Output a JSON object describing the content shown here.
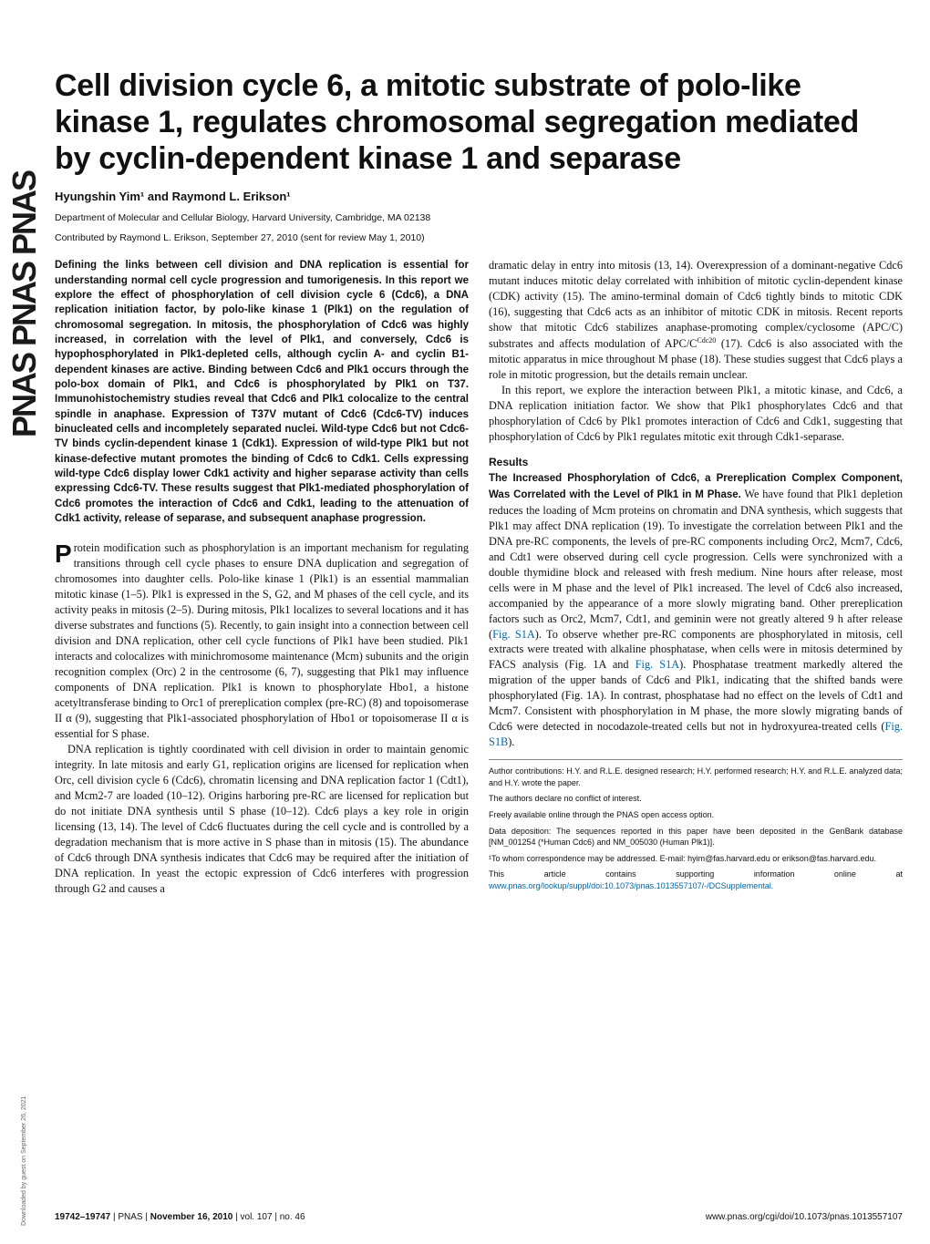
{
  "sidebar": {
    "logo_text": "PNAS  PNAS  PNAS",
    "download_note": "Downloaded by guest on September 26, 2021"
  },
  "title": "Cell division cycle 6, a mitotic substrate of polo-like kinase 1, regulates chromosomal segregation mediated by cyclin-dependent kinase 1 and separase",
  "authors": "Hyungshin Yim¹ and Raymond L. Erikson¹",
  "affiliation": "Department of Molecular and Cellular Biology, Harvard University, Cambridge, MA 02138",
  "contributed": "Contributed by Raymond L. Erikson, September 27, 2010 (sent for review May 1, 2010)",
  "abstract": "Defining the links between cell division and DNA replication is essential for understanding normal cell cycle progression and tumorigenesis. In this report we explore the effect of phosphorylation of cell division cycle 6 (Cdc6), a DNA replication initiation factor, by polo-like kinase 1 (Plk1) on the regulation of chromosomal segregation. In mitosis, the phosphorylation of Cdc6 was highly increased, in correlation with the level of Plk1, and conversely, Cdc6 is hypophosphorylated in Plk1-depleted cells, although cyclin A- and cyclin B1-dependent kinases are active. Binding between Cdc6 and Plk1 occurs through the polo-box domain of Plk1, and Cdc6 is phosphorylated by Plk1 on T37. Immunohistochemistry studies reveal that Cdc6 and Plk1 colocalize to the central spindle in anaphase. Expression of T37V mutant of Cdc6 (Cdc6-TV) induces binucleated cells and incompletely separated nuclei. Wild-type Cdc6 but not Cdc6-TV binds cyclin-dependent kinase 1 (Cdk1). Expression of wild-type Plk1 but not kinase-defective mutant promotes the binding of Cdc6 to Cdk1. Cells expressing wild-type Cdc6 display lower Cdk1 activity and higher separase activity than cells expressing Cdc6-TV. These results suggest that Plk1-mediated phosphorylation of Cdc6 promotes the interaction of Cdc6 and Cdk1, leading to the attenuation of Cdk1 activity, release of separase, and subsequent anaphase progression.",
  "intro_p1": "Protein modification such as phosphorylation is an important mechanism for regulating transitions through cell cycle phases to ensure DNA duplication and segregation of chromosomes into daughter cells. Polo-like kinase 1 (Plk1) is an essential mammalian mitotic kinase (1–5). Plk1 is expressed in the S, G2, and M phases of the cell cycle, and its activity peaks in mitosis (2–5). During mitosis, Plk1 localizes to several locations and it has diverse substrates and functions (5). Recently, to gain insight into a connection between cell division and DNA replication, other cell cycle functions of Plk1 have been studied. Plk1 interacts and colocalizes with minichromosome maintenance (Mcm) subunits and the origin recognition complex (Orc) 2 in the centrosome (6, 7), suggesting that Plk1 may influence components of DNA replication. Plk1 is known to phosphorylate Hbo1, a histone acetyltransferase binding to Orc1 of prereplication complex (pre-RC) (8) and topoisomerase II α (9), suggesting that Plk1-associated phosphorylation of Hbo1 or topoisomerase II α is essential for S phase.",
  "intro_p2": "DNA replication is tightly coordinated with cell division in order to maintain genomic integrity. In late mitosis and early G1, replication origins are licensed for replication when Orc, cell division cycle 6 (Cdc6), chromatin licensing and DNA replication factor 1 (Cdt1), and Mcm2-7 are loaded (10–12). Origins harboring pre-RC are licensed for replication but do not initiate DNA synthesis until S phase (10–12). Cdc6 plays a key role in origin licensing (13, 14). The level of Cdc6 fluctuates during the cell cycle and is controlled by a degradation mechanism that is more active in S phase than in mitosis (15). The abundance of Cdc6 through DNA synthesis indicates that Cdc6 may be required after the initiation of DNA replication. In yeast the ectopic expression of Cdc6 interferes with progression through G2 and causes a",
  "col2_p1_a": "dramatic delay in entry into mitosis (13, 14). Overexpression of a dominant-negative Cdc6 mutant induces mitotic delay correlated with inhibition of mitotic cyclin-dependent kinase (CDK) activity (15). The amino-terminal domain of Cdc6 tightly binds to mitotic CDK (16), suggesting that Cdc6 acts as an inhibitor of mitotic CDK in mitosis. Recent reports show that mitotic Cdc6 stabilizes anaphase-promoting complex/cyclosome (APC/C) substrates and affects modulation of APC/C",
  "col2_p1_cdc20": "Cdc20",
  "col2_p1_b": " (17). Cdc6 is also associated with the mitotic apparatus in mice throughout M phase (18). These studies suggest that Cdc6 plays a role in mitotic progression, but the details remain unclear.",
  "col2_p2": "In this report, we explore the interaction between Plk1, a mitotic kinase, and Cdc6, a DNA replication initiation factor. We show that Plk1 phosphorylates Cdc6 and that phosphorylation of Cdc6 by Plk1 promotes interaction of Cdc6 and Cdk1, suggesting that phosphorylation of Cdc6 by Plk1 regulates mitotic exit through Cdk1-separase.",
  "results_heading": "Results",
  "results_sub": "The Increased Phosphorylation of Cdc6, a Prereplication Complex Component, Was Correlated with the Level of Plk1 in M Phase.",
  "results_body_a": " We have found that Plk1 depletion reduces the loading of Mcm proteins on chromatin and DNA synthesis, which suggests that Plk1 may affect DNA replication (19). To investigate the correlation between Plk1 and the DNA pre-RC components, the levels of pre-RC components including Orc2, Mcm7, Cdc6, and Cdt1 were observed during cell cycle progression. Cells were synchronized with a double thymidine block and released with fresh medium. Nine hours after release, most cells were in M phase and the level of Plk1 increased. The level of Cdc6 also increased, accompanied by the appearance of a more slowly migrating band. Other prereplication factors such as Orc2, Mcm7, Cdt1, and geminin were not greatly altered 9 h after release (",
  "fig_s1a_1": "Fig. S1A",
  "results_body_b": "). To observe whether pre-RC components are phosphorylated in mitosis, cell extracts were treated with alkaline phosphatase, when cells were in mitosis determined by FACS analysis (Fig. 1A and ",
  "fig_s1a_2": "Fig. S1A",
  "results_body_c": "). Phosphatase treatment markedly altered the migration of the upper bands of Cdc6 and Plk1, indicating that the shifted bands were phosphorylated (Fig. 1A). In contrast, phosphatase had no effect on the levels of Cdt1 and Mcm7. Consistent with phosphorylation in M phase, the more slowly migrating bands of Cdc6 were detected in nocodazole-treated cells but not in hydroxyurea-treated cells (",
  "fig_s1b": "Fig. S1B",
  "results_body_d": ").",
  "footnotes": {
    "f1": "Author contributions: H.Y. and R.L.E. designed research; H.Y. performed research; H.Y. and R.L.E. analyzed data; and H.Y. wrote the paper.",
    "f2": "The authors declare no conflict of interest.",
    "f3": "Freely available online through the PNAS open access option.",
    "f4": "Data deposition: The sequences reported in this paper have been deposited in the GenBank database [NM_001254 (*Human Cdc6) and NM_005030 (Human Plk1)].",
    "f5": "¹To whom correspondence may be addressed. E-mail: hyim@fas.harvard.edu or erikson@fas.harvard.edu.",
    "f6_a": "This article contains supporting information online at ",
    "f6_link": "www.pnas.org/lookup/suppl/doi:10.1073/pnas.1013557107/-/DCSupplemental.",
    "f6_b": ""
  },
  "footer": {
    "left_pages": "19742–19747",
    "left_sep1": " | ",
    "left_pnas": "PNAS",
    "left_sep2": " | ",
    "left_date": "November 16, 2010",
    "left_sep3": " | ",
    "left_vol": "vol. 107",
    "left_sep4": " | ",
    "left_no": "no. 46",
    "right": "www.pnas.org/cgi/doi/10.1073/pnas.1013557107"
  }
}
